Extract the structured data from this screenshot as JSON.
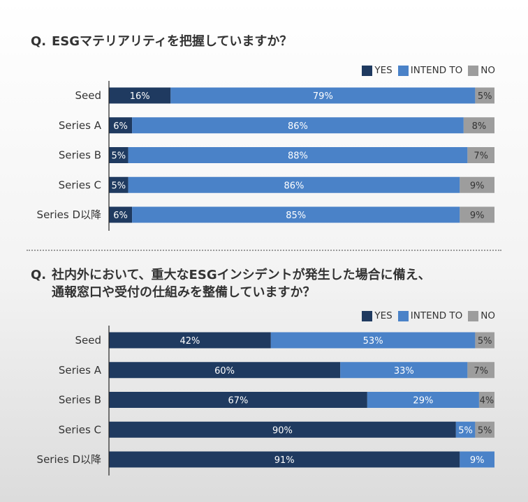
{
  "colors": {
    "yes": "#1f3a60",
    "intend": "#4a82c8",
    "no": "#9d9d9d",
    "no_label": "#333333"
  },
  "legend": {
    "yes": "YES",
    "intend": "INTEND TO",
    "no": "NO"
  },
  "chart_data": [
    {
      "type": "bar",
      "orientation": "horizontal-stacked",
      "title": "Q. ESGマテリアリティを把握していますか？",
      "categories": [
        "Seed",
        "Series A",
        "Series B",
        "Series C",
        "Series D以降"
      ],
      "series": [
        {
          "name": "YES",
          "values": [
            16,
            6,
            5,
            5,
            6
          ]
        },
        {
          "name": "INTEND TO",
          "values": [
            79,
            86,
            88,
            86,
            85
          ]
        },
        {
          "name": "NO",
          "values": [
            5,
            8,
            7,
            9,
            9
          ]
        }
      ],
      "unit": "%",
      "legend_position": "top-right"
    },
    {
      "type": "bar",
      "orientation": "horizontal-stacked",
      "title": "Q. 社内外において、重大なESGインシデントが発生した場合に備え、通報窓口や受付の仕組みを整備していますか？",
      "categories": [
        "Seed",
        "Series A",
        "Series B",
        "Series C",
        "Series D以降"
      ],
      "series": [
        {
          "name": "YES",
          "values": [
            42,
            60,
            67,
            90,
            91
          ]
        },
        {
          "name": "INTEND TO",
          "values": [
            53,
            33,
            29,
            5,
            9
          ]
        },
        {
          "name": "NO",
          "values": [
            5,
            7,
            4,
            5,
            0
          ]
        }
      ],
      "unit": "%",
      "legend_position": "top-right"
    }
  ],
  "panels": [
    {
      "q_mark": "Q.",
      "title_lines": [
        "ESGマテリアリティを把握していますか？"
      ]
    },
    {
      "q_mark": "Q.",
      "title_lines": [
        "社内外において、重大なESGインシデントが発生した場合に備え、",
        "通報窓口や受付の仕組みを整備していますか？"
      ]
    }
  ]
}
